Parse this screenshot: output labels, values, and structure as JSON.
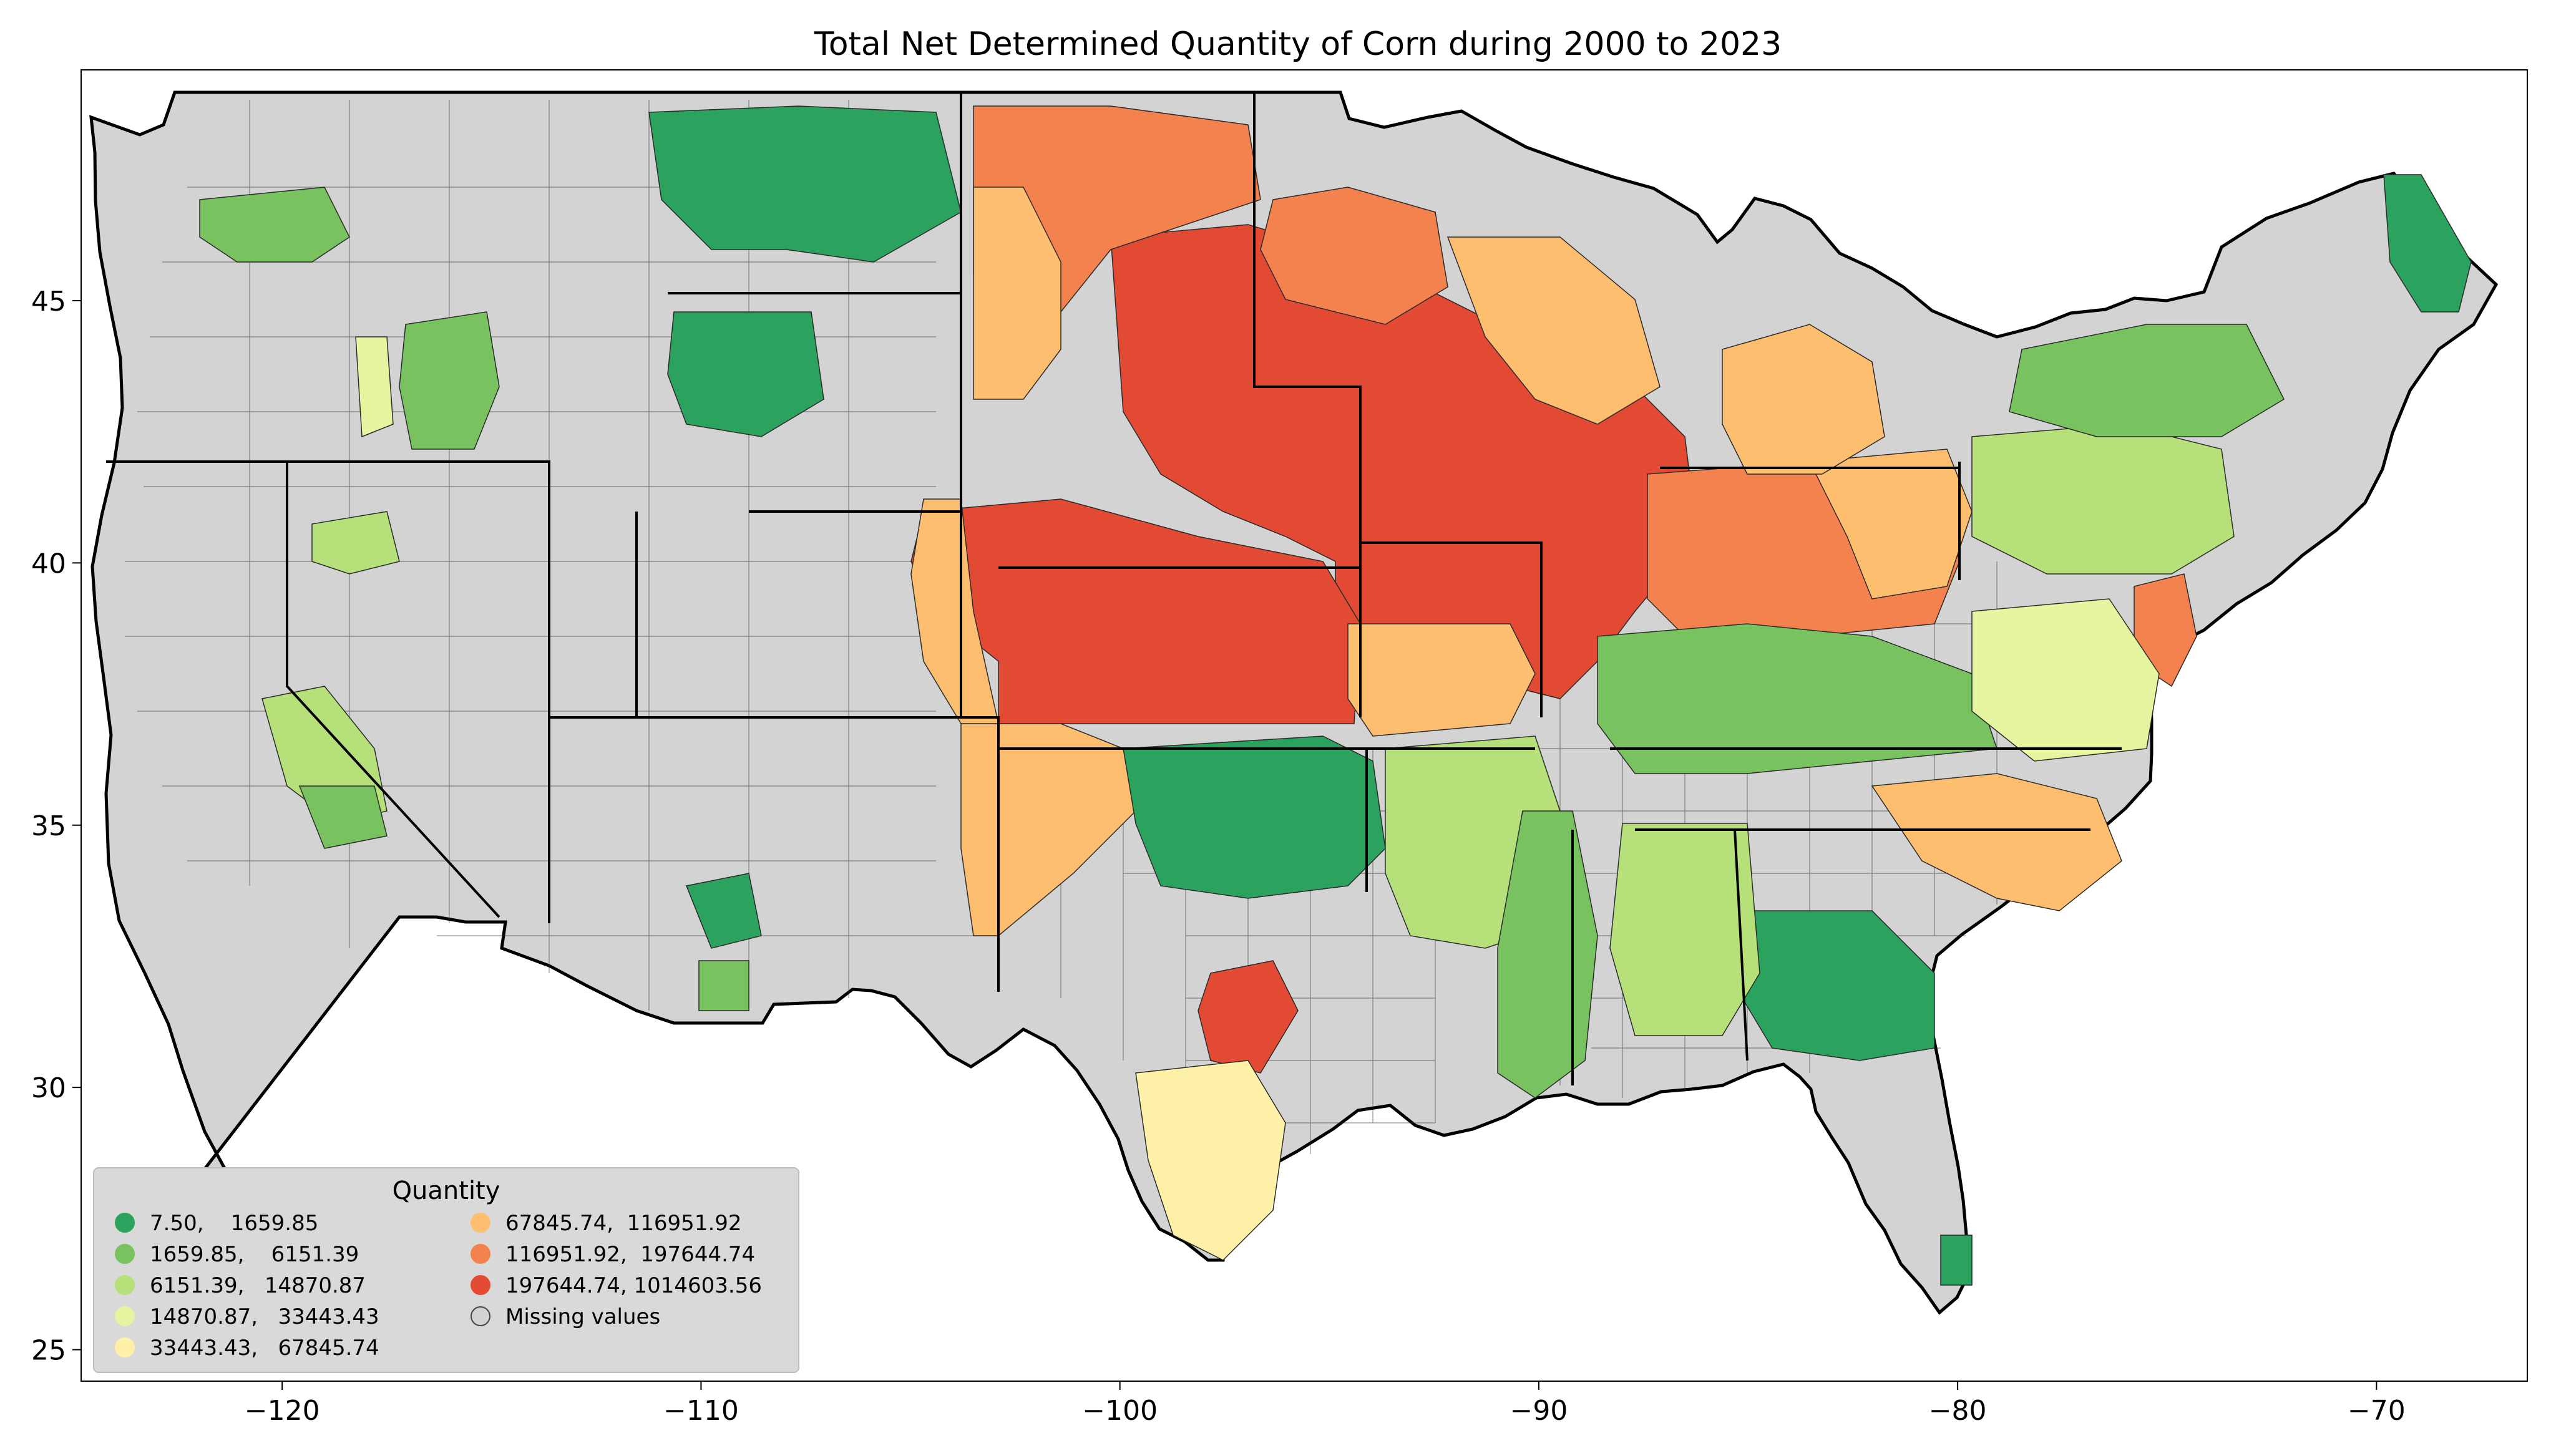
{
  "chart_data": {
    "type": "choropleth",
    "title": "Total Net Determined Quantity of Corn during 2000 to 2023",
    "x_ticks": [
      -120,
      -110,
      -100,
      -90,
      -80,
      -70
    ],
    "y_ticks": [
      25,
      30,
      35,
      40,
      45
    ],
    "xlim": [
      -124.8,
      -66.4
    ],
    "ylim": [
      24.4,
      49.4
    ],
    "missing_color": "#d3d3d3",
    "legend": {
      "title": "Quantity",
      "position": "lower-left",
      "entries": [
        {
          "label": "7.50,    1659.85",
          "color": "#2ca25f"
        },
        {
          "label": "1659.85,    6151.39",
          "color": "#78c35f"
        },
        {
          "label": "6151.39,   14870.87",
          "color": "#b6e07a"
        },
        {
          "label": "14870.87,   33443.43",
          "color": "#e6f5a0"
        },
        {
          "label": "33443.43,   67845.74",
          "color": "#fff2a8"
        },
        {
          "label": "67845.74,  116951.92",
          "color": "#fdbf6f"
        },
        {
          "label": "116951.92,  197644.74",
          "color": "#f4824e"
        },
        {
          "label": "197644.74, 1014603.56",
          "color": "#e34a33"
        },
        {
          "label": "Missing values",
          "color": "#d3d3d3"
        }
      ]
    }
  }
}
